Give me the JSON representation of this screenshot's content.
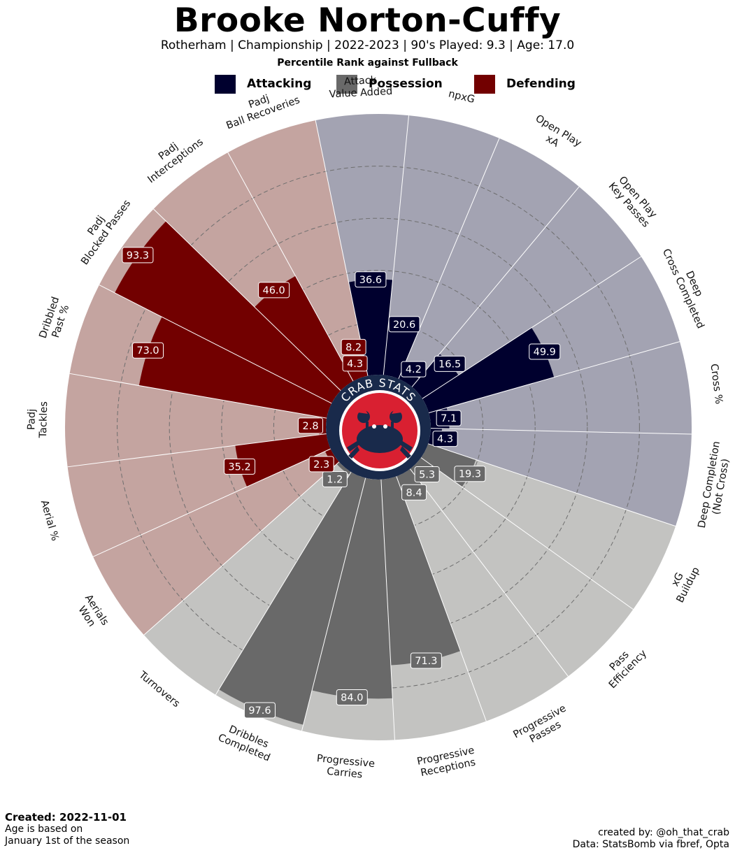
{
  "header": {
    "title": "Brooke Norton-Cuffy",
    "subtitle": "Rotherham  | Championship | 2022-2023 | 90's Played: 9.3 | Age: 17.0",
    "rank_label": "Percentile Rank against Fullback"
  },
  "legend": [
    {
      "label": "Attacking",
      "color": "#00002e"
    },
    {
      "label": "Possession",
      "color": "#696969"
    },
    {
      "label": "Defending",
      "color": "#720000"
    }
  ],
  "logo": {
    "text": "CRAB STATS"
  },
  "footer": {
    "created": "Created: 2022-11-01",
    "note_line1": "Age is based on",
    "note_line2": "January 1st of the season",
    "credit_line1": "created by: @oh_that_crab",
    "credit_line2": "Data: StatsBomb via fbref, Opta"
  },
  "chart_data": {
    "type": "polar-bar",
    "title": "Brooke Norton-Cuffy",
    "ylim": [
      0,
      100
    ],
    "grid": true,
    "categories": [
      {
        "label": [
          "Attack",
          "Value Added"
        ],
        "group": "Attacking",
        "value": 36.6
      },
      {
        "label": [
          "npxG"
        ],
        "group": "Attacking",
        "value": 20.6
      },
      {
        "label": [
          "Open Play",
          "xA"
        ],
        "group": "Attacking",
        "value": 4.2
      },
      {
        "label": [
          "Open Play",
          "Key Passes"
        ],
        "group": "Attacking",
        "value": 16.5
      },
      {
        "label": [
          "Deep",
          "Cross Completed"
        ],
        "group": "Attacking",
        "value": 49.9
      },
      {
        "label": [
          "Cross %"
        ],
        "group": "Attacking",
        "value": 7.1
      },
      {
        "label": [
          "Deep Completion",
          "(Not Cross)"
        ],
        "group": "Attacking",
        "value": 4.3
      },
      {
        "label": [
          "xG",
          "Buildup"
        ],
        "group": "Possession",
        "value": 19.3
      },
      {
        "label": [
          "Pass",
          "Efficiency"
        ],
        "group": "Possession",
        "value": 5.3
      },
      {
        "label": [
          "Progressive",
          "Passes"
        ],
        "group": "Possession",
        "value": 8.4
      },
      {
        "label": [
          "Progressive",
          "Receptions"
        ],
        "group": "Possession",
        "value": 71.3
      },
      {
        "label": [
          "Progressive",
          "Carries"
        ],
        "group": "Possession",
        "value": 84.0
      },
      {
        "label": [
          "Dribbles",
          "Completed"
        ],
        "group": "Possession",
        "value": 97.6
      },
      {
        "label": [
          "Turnovers"
        ],
        "group": "Possession",
        "value": 1.2
      },
      {
        "label": [
          "Aerials",
          "Won"
        ],
        "group": "Defending",
        "value": 2.3
      },
      {
        "label": [
          "Aerial %"
        ],
        "group": "Defending",
        "value": 35.2
      },
      {
        "label": [
          "Padj",
          "Tackles"
        ],
        "group": "Defending",
        "value": 2.8
      },
      {
        "label": [
          "Dribbled",
          "Past %"
        ],
        "group": "Defending",
        "value": 73.0
      },
      {
        "label": [
          "Padj",
          "Blocked Passes"
        ],
        "group": "Defending",
        "value": 93.3
      },
      {
        "label": [
          "Padj",
          "Interceptions"
        ],
        "group": "Defending",
        "value": 46.0
      },
      {
        "label": [
          "Padj",
          "Ball Recoveries"
        ],
        "group": "Defending",
        "value": 4.3
      }
    ],
    "extra_value_label": "8.2",
    "group_colors": {
      "Attacking": {
        "bar": "#00002e",
        "bg": "#a3a3b2"
      },
      "Possession": {
        "bar": "#696969",
        "bg": "#c3c3c1"
      },
      "Defending": {
        "bar": "#720000",
        "bg": "#c4a4a0"
      }
    }
  }
}
